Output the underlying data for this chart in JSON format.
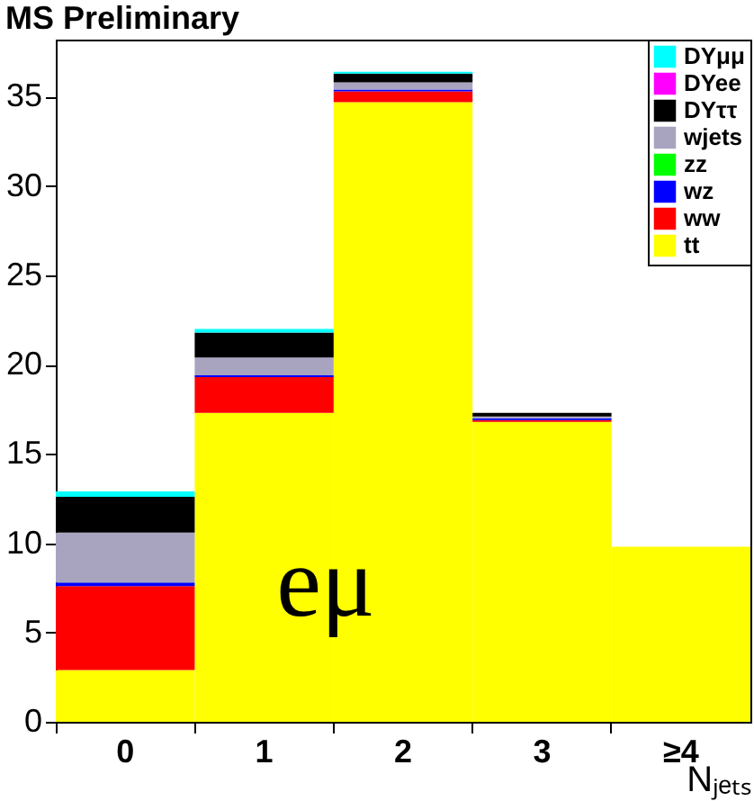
{
  "chart_data": {
    "type": "bar",
    "title": "MS Preliminary",
    "xlabel": "Nⱼₑₜₛ",
    "annotations": [
      "eμ"
    ],
    "categories": [
      "0",
      "1",
      "2",
      "3",
      "≥4"
    ],
    "stacked": true,
    "legend": "top right",
    "ylim": [
      0,
      38.2
    ],
    "yticks": [
      0,
      5,
      10,
      15,
      20,
      25,
      30,
      35
    ],
    "series": [
      {
        "name": "tt",
        "color": "#ffff00",
        "values": [
          2.9,
          17.3,
          34.7,
          16.8,
          9.8
        ]
      },
      {
        "name": "ww",
        "color": "#ff0000",
        "values": [
          4.7,
          2.0,
          0.6,
          0.1,
          0
        ]
      },
      {
        "name": "wz",
        "color": "#0000ff",
        "values": [
          0.2,
          0.1,
          0.1,
          0.1,
          0
        ]
      },
      {
        "name": "zz",
        "color": "#00ff00",
        "values": [
          0,
          0,
          0,
          0,
          0
        ]
      },
      {
        "name": "wjets",
        "color": "#a8a4c0",
        "values": [
          2.8,
          1.0,
          0.4,
          0.1,
          0
        ]
      },
      {
        "name": "DYττ",
        "color": "#000000",
        "values": [
          2.0,
          1.4,
          0.5,
          0.2,
          0
        ]
      },
      {
        "name": "DYee",
        "color": "#ff00ff",
        "values": [
          0,
          0,
          0,
          0,
          0
        ]
      },
      {
        "name": "DYμμ",
        "color": "#00ffff",
        "values": [
          0.3,
          0.2,
          0.1,
          0,
          0
        ]
      }
    ]
  }
}
